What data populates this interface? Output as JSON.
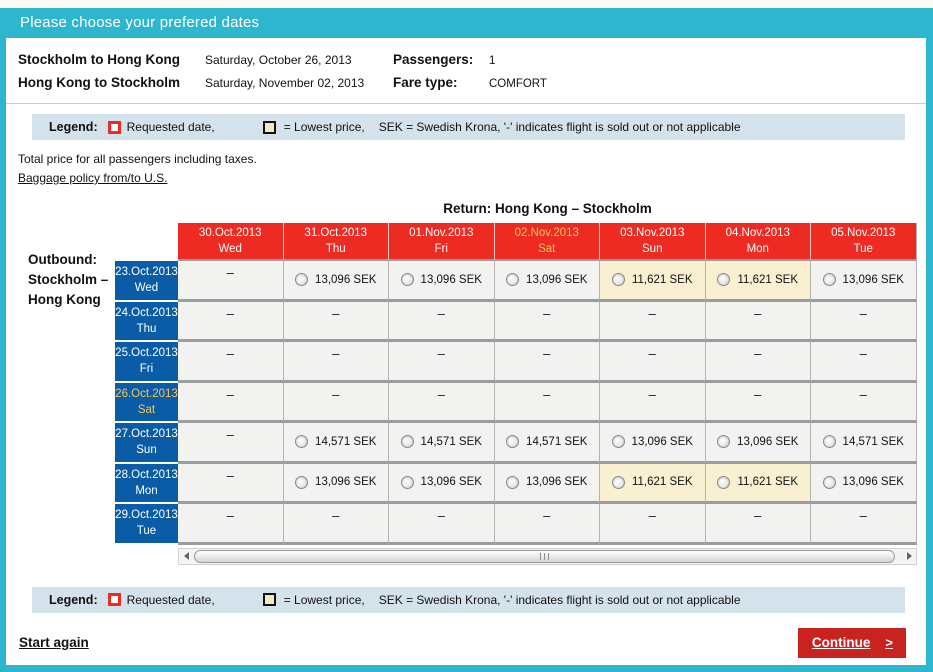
{
  "window": {
    "title": "Please choose your prefered dates"
  },
  "trip": {
    "legs": [
      {
        "route": "Stockholm to Hong Kong",
        "date": "Saturday, October 26, 2013"
      },
      {
        "route": "Hong Kong to Stockholm",
        "date": "Saturday, November 02, 2013"
      }
    ],
    "passengers_label": "Passengers:",
    "passengers_value": "1",
    "fare_type_label": "Fare type:",
    "fare_type_value": "COMFORT"
  },
  "legend": {
    "label": "Legend:",
    "requested_label": "Requested date,",
    "lowest_label": "= Lowest price,",
    "currency_note": "SEK  = Swedish Krona, '-' indicates flight is sold out or not applicable"
  },
  "notes": {
    "total_price": "Total price for all passengers including taxes.",
    "baggage_link": "Baggage policy from/to U.S."
  },
  "calendar": {
    "return_title": "Return: Hong Kong – Stockholm",
    "outbound_lines": [
      "Outbound:",
      "Stockholm –",
      "Hong Kong"
    ],
    "dash": "–",
    "columns": [
      {
        "date": "30.Oct.2013",
        "day": "Wed",
        "requested": false
      },
      {
        "date": "31.Oct.2013",
        "day": "Thu",
        "requested": false
      },
      {
        "date": "01.Nov.2013",
        "day": "Fri",
        "requested": false
      },
      {
        "date": "02.Nov.2013",
        "day": "Sat",
        "requested": true
      },
      {
        "date": "03.Nov.2013",
        "day": "Sun",
        "requested": false
      },
      {
        "date": "04.Nov.2013",
        "day": "Mon",
        "requested": false
      },
      {
        "date": "05.Nov.2013",
        "day": "Tue",
        "requested": false
      }
    ],
    "rows": [
      {
        "date": "23.Oct.2013",
        "day": "Wed",
        "requested": false,
        "cells": [
          null,
          {
            "price": "13,096 SEK",
            "lowest": false
          },
          {
            "price": "13,096 SEK",
            "lowest": false
          },
          {
            "price": "13,096 SEK",
            "lowest": false
          },
          {
            "price": "11,621 SEK",
            "lowest": true
          },
          {
            "price": "11,621 SEK",
            "lowest": true
          },
          {
            "price": "13,096 SEK",
            "lowest": false
          }
        ]
      },
      {
        "date": "24.Oct.2013",
        "day": "Thu",
        "requested": false,
        "cells": [
          null,
          null,
          null,
          null,
          null,
          null,
          null
        ]
      },
      {
        "date": "25.Oct.2013",
        "day": "Fri",
        "requested": false,
        "cells": [
          null,
          null,
          null,
          null,
          null,
          null,
          null
        ]
      },
      {
        "date": "26.Oct.2013",
        "day": "Sat",
        "requested": true,
        "cells": [
          null,
          null,
          null,
          null,
          null,
          null,
          null
        ]
      },
      {
        "date": "27.Oct.2013",
        "day": "Sun",
        "requested": false,
        "cells": [
          null,
          {
            "price": "14,571 SEK",
            "lowest": false
          },
          {
            "price": "14,571 SEK",
            "lowest": false
          },
          {
            "price": "14,571 SEK",
            "lowest": false
          },
          {
            "price": "13,096 SEK",
            "lowest": false
          },
          {
            "price": "13,096 SEK",
            "lowest": false
          },
          {
            "price": "14,571 SEK",
            "lowest": false
          }
        ]
      },
      {
        "date": "28.Oct.2013",
        "day": "Mon",
        "requested": false,
        "cells": [
          null,
          {
            "price": "13,096 SEK",
            "lowest": false
          },
          {
            "price": "13,096 SEK",
            "lowest": false
          },
          {
            "price": "13,096 SEK",
            "lowest": false
          },
          {
            "price": "11,621 SEK",
            "lowest": true
          },
          {
            "price": "11,621 SEK",
            "lowest": true
          },
          {
            "price": "13,096 SEK",
            "lowest": false
          }
        ]
      },
      {
        "date": "29.Oct.2013",
        "day": "Tue",
        "requested": false,
        "cells": [
          null,
          null,
          null,
          null,
          null,
          null,
          null
        ]
      }
    ]
  },
  "footer": {
    "start_again": "Start again",
    "continue_label": "Continue",
    "continue_arrow": ">"
  },
  "colors": {
    "teal": "#2eb6cf",
    "header_red": "#ee2b23",
    "row_blue": "#0b5ca6",
    "requested_gold": "#f2c55f",
    "lowest_beige": "#f9f0d2",
    "button_red": "#c8231e"
  }
}
